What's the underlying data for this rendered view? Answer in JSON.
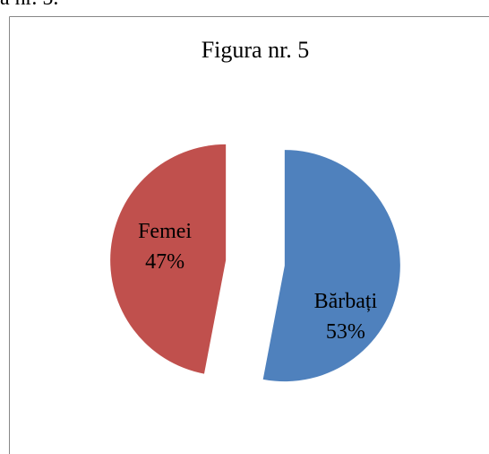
{
  "caption": "a nr. 5.",
  "chart_data": {
    "type": "pie",
    "title": "Figura nr. 5",
    "categories": [
      "Bărbați",
      "Femei"
    ],
    "values": [
      53,
      47
    ],
    "value_labels": [
      "53%",
      "47%"
    ],
    "colors": [
      "#4f81bd",
      "#c0504d"
    ],
    "exploded": true
  }
}
